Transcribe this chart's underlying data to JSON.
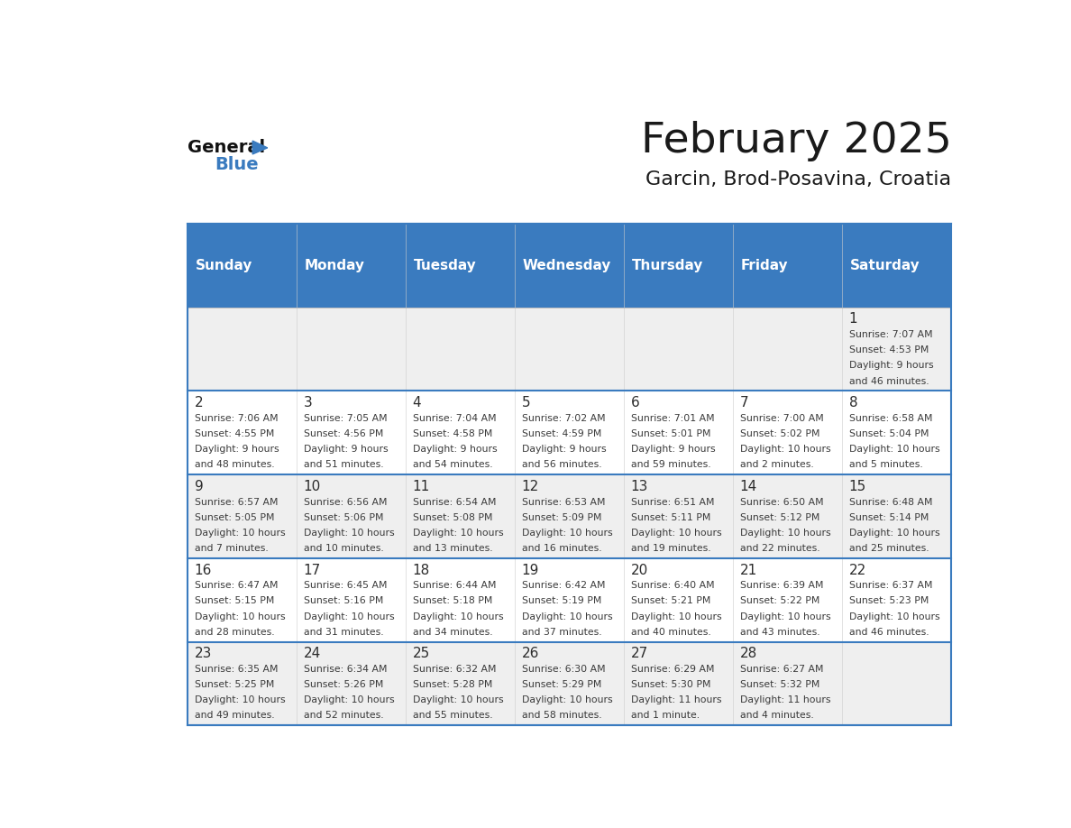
{
  "title": "February 2025",
  "subtitle": "Garcin, Brod-Posavina, Croatia",
  "header_color": "#3a7bbf",
  "header_text_color": "#ffffff",
  "day_names": [
    "Sunday",
    "Monday",
    "Tuesday",
    "Wednesday",
    "Thursday",
    "Friday",
    "Saturday"
  ],
  "bg_color": "#ffffff",
  "cell_bg_even": "#efefef",
  "cell_bg_odd": "#ffffff",
  "border_color": "#3a7bbf",
  "day_number_color": "#2c2c2c",
  "info_text_color": "#3a3a3a",
  "days": [
    {
      "day": 1,
      "col": 6,
      "row": 0,
      "sunrise": "7:07 AM",
      "sunset": "4:53 PM",
      "daylight_h": "9 hours",
      "daylight_m": "46 minutes"
    },
    {
      "day": 2,
      "col": 0,
      "row": 1,
      "sunrise": "7:06 AM",
      "sunset": "4:55 PM",
      "daylight_h": "9 hours",
      "daylight_m": "48 minutes"
    },
    {
      "day": 3,
      "col": 1,
      "row": 1,
      "sunrise": "7:05 AM",
      "sunset": "4:56 PM",
      "daylight_h": "9 hours",
      "daylight_m": "51 minutes"
    },
    {
      "day": 4,
      "col": 2,
      "row": 1,
      "sunrise": "7:04 AM",
      "sunset": "4:58 PM",
      "daylight_h": "9 hours",
      "daylight_m": "54 minutes"
    },
    {
      "day": 5,
      "col": 3,
      "row": 1,
      "sunrise": "7:02 AM",
      "sunset": "4:59 PM",
      "daylight_h": "9 hours",
      "daylight_m": "56 minutes"
    },
    {
      "day": 6,
      "col": 4,
      "row": 1,
      "sunrise": "7:01 AM",
      "sunset": "5:01 PM",
      "daylight_h": "9 hours",
      "daylight_m": "59 minutes"
    },
    {
      "day": 7,
      "col": 5,
      "row": 1,
      "sunrise": "7:00 AM",
      "sunset": "5:02 PM",
      "daylight_h": "10 hours",
      "daylight_m": "2 minutes"
    },
    {
      "day": 8,
      "col": 6,
      "row": 1,
      "sunrise": "6:58 AM",
      "sunset": "5:04 PM",
      "daylight_h": "10 hours",
      "daylight_m": "5 minutes"
    },
    {
      "day": 9,
      "col": 0,
      "row": 2,
      "sunrise": "6:57 AM",
      "sunset": "5:05 PM",
      "daylight_h": "10 hours",
      "daylight_m": "7 minutes"
    },
    {
      "day": 10,
      "col": 1,
      "row": 2,
      "sunrise": "6:56 AM",
      "sunset": "5:06 PM",
      "daylight_h": "10 hours",
      "daylight_m": "10 minutes"
    },
    {
      "day": 11,
      "col": 2,
      "row": 2,
      "sunrise": "6:54 AM",
      "sunset": "5:08 PM",
      "daylight_h": "10 hours",
      "daylight_m": "13 minutes"
    },
    {
      "day": 12,
      "col": 3,
      "row": 2,
      "sunrise": "6:53 AM",
      "sunset": "5:09 PM",
      "daylight_h": "10 hours",
      "daylight_m": "16 minutes"
    },
    {
      "day": 13,
      "col": 4,
      "row": 2,
      "sunrise": "6:51 AM",
      "sunset": "5:11 PM",
      "daylight_h": "10 hours",
      "daylight_m": "19 minutes"
    },
    {
      "day": 14,
      "col": 5,
      "row": 2,
      "sunrise": "6:50 AM",
      "sunset": "5:12 PM",
      "daylight_h": "10 hours",
      "daylight_m": "22 minutes"
    },
    {
      "day": 15,
      "col": 6,
      "row": 2,
      "sunrise": "6:48 AM",
      "sunset": "5:14 PM",
      "daylight_h": "10 hours",
      "daylight_m": "25 minutes"
    },
    {
      "day": 16,
      "col": 0,
      "row": 3,
      "sunrise": "6:47 AM",
      "sunset": "5:15 PM",
      "daylight_h": "10 hours",
      "daylight_m": "28 minutes"
    },
    {
      "day": 17,
      "col": 1,
      "row": 3,
      "sunrise": "6:45 AM",
      "sunset": "5:16 PM",
      "daylight_h": "10 hours",
      "daylight_m": "31 minutes"
    },
    {
      "day": 18,
      "col": 2,
      "row": 3,
      "sunrise": "6:44 AM",
      "sunset": "5:18 PM",
      "daylight_h": "10 hours",
      "daylight_m": "34 minutes"
    },
    {
      "day": 19,
      "col": 3,
      "row": 3,
      "sunrise": "6:42 AM",
      "sunset": "5:19 PM",
      "daylight_h": "10 hours",
      "daylight_m": "37 minutes"
    },
    {
      "day": 20,
      "col": 4,
      "row": 3,
      "sunrise": "6:40 AM",
      "sunset": "5:21 PM",
      "daylight_h": "10 hours",
      "daylight_m": "40 minutes"
    },
    {
      "day": 21,
      "col": 5,
      "row": 3,
      "sunrise": "6:39 AM",
      "sunset": "5:22 PM",
      "daylight_h": "10 hours",
      "daylight_m": "43 minutes"
    },
    {
      "day": 22,
      "col": 6,
      "row": 3,
      "sunrise": "6:37 AM",
      "sunset": "5:23 PM",
      "daylight_h": "10 hours",
      "daylight_m": "46 minutes"
    },
    {
      "day": 23,
      "col": 0,
      "row": 4,
      "sunrise": "6:35 AM",
      "sunset": "5:25 PM",
      "daylight_h": "10 hours",
      "daylight_m": "49 minutes"
    },
    {
      "day": 24,
      "col": 1,
      "row": 4,
      "sunrise": "6:34 AM",
      "sunset": "5:26 PM",
      "daylight_h": "10 hours",
      "daylight_m": "52 minutes"
    },
    {
      "day": 25,
      "col": 2,
      "row": 4,
      "sunrise": "6:32 AM",
      "sunset": "5:28 PM",
      "daylight_h": "10 hours",
      "daylight_m": "55 minutes"
    },
    {
      "day": 26,
      "col": 3,
      "row": 4,
      "sunrise": "6:30 AM",
      "sunset": "5:29 PM",
      "daylight_h": "10 hours",
      "daylight_m": "58 minutes"
    },
    {
      "day": 27,
      "col": 4,
      "row": 4,
      "sunrise": "6:29 AM",
      "sunset": "5:30 PM",
      "daylight_h": "11 hours",
      "daylight_m": "1 minute"
    },
    {
      "day": 28,
      "col": 5,
      "row": 4,
      "sunrise": "6:27 AM",
      "sunset": "5:32 PM",
      "daylight_h": "11 hours",
      "daylight_m": "4 minutes"
    }
  ]
}
